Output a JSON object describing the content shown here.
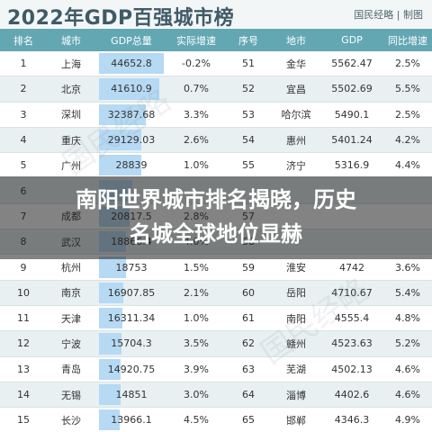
{
  "header": {
    "title": "2022年GDP百强城市榜",
    "source": "国民经略 | 制图"
  },
  "table": {
    "columns": [
      "排名",
      "城市",
      "GDP总量",
      "实际增速",
      "序号",
      "地市",
      "GDP",
      "同比增速"
    ],
    "max_gdp": 44652.8,
    "rows": [
      {
        "rank": "1",
        "city": "上海",
        "gdp": "44652.8",
        "gdp_value": 44652.8,
        "growth": "-0.2%",
        "seq": "51",
        "city2": "金华",
        "gdp2": "5562.47",
        "growth2": "2.5%"
      },
      {
        "rank": "2",
        "city": "北京",
        "gdp": "41610.9",
        "gdp_value": 41610.9,
        "growth": "0.7%",
        "seq": "52",
        "city2": "宜昌",
        "gdp2": "5502.69",
        "growth2": "5.5%"
      },
      {
        "rank": "3",
        "city": "深圳",
        "gdp": "32387.68",
        "gdp_value": 32387.68,
        "growth": "3.3%",
        "seq": "53",
        "city2": "哈尔滨",
        "gdp2": "5490.1",
        "growth2": "2.5%"
      },
      {
        "rank": "4",
        "city": "重庆",
        "gdp": "29129.03",
        "gdp_value": 29129.03,
        "growth": "2.6%",
        "seq": "54",
        "city2": "惠州",
        "gdp2": "5401.24",
        "growth2": "4.2%"
      },
      {
        "rank": "5",
        "city": "广州",
        "gdp": "28839",
        "gdp_value": 28839,
        "growth": "1.0%",
        "seq": "55",
        "city2": "济宁",
        "gdp2": "5316.9",
        "growth2": "4.4%"
      },
      {
        "rank": "6",
        "city": "",
        "gdp": "",
        "gdp_value": 23000,
        "growth": "",
        "seq": "",
        "city2": "",
        "gdp2": "",
        "growth2": ""
      },
      {
        "rank": "7",
        "city": "成都",
        "gdp": "20817.5",
        "gdp_value": 20817.5,
        "growth": "2.8%",
        "seq": "57",
        "city2": "",
        "gdp2": "",
        "growth2": ""
      },
      {
        "rank": "8",
        "city": "武汉",
        "gdp": "18866.4",
        "gdp_value": 18866.4,
        "growth": "4.0%",
        "seq": "58",
        "city2": "",
        "gdp2": "",
        "growth2": ""
      },
      {
        "rank": "9",
        "city": "杭州",
        "gdp": "18753",
        "gdp_value": 18753,
        "growth": "1.5%",
        "seq": "59",
        "city2": "淮安",
        "gdp2": "4742",
        "growth2": "3.6%"
      },
      {
        "rank": "10",
        "city": "南京",
        "gdp": "16907.85",
        "gdp_value": 16907.85,
        "growth": "2.1%",
        "seq": "60",
        "city2": "岳阳",
        "gdp2": "4710.67",
        "growth2": "5.4%"
      },
      {
        "rank": "11",
        "city": "天津",
        "gdp": "16311.34",
        "gdp_value": 16311.34,
        "growth": "1.0%",
        "seq": "61",
        "city2": "南阳",
        "gdp2": "4555.4",
        "growth2": "4.8%"
      },
      {
        "rank": "12",
        "city": "宁波",
        "gdp": "15704.3",
        "gdp_value": 15704.3,
        "growth": "3.5%",
        "seq": "62",
        "city2": "赣州",
        "gdp2": "4523.63",
        "growth2": "5.2%"
      },
      {
        "rank": "13",
        "city": "青岛",
        "gdp": "14920.75",
        "gdp_value": 14920.75,
        "growth": "3.9%",
        "seq": "63",
        "city2": "芜湖",
        "gdp2": "4502.13",
        "growth2": "4.6%"
      },
      {
        "rank": "14",
        "city": "无锡",
        "gdp": "14851",
        "gdp_value": 14851,
        "growth": "3.0%",
        "seq": "64",
        "city2": "淄博",
        "gdp2": "4402.6",
        "growth2": "4.6%"
      },
      {
        "rank": "15",
        "city": "长沙",
        "gdp": "13966.1",
        "gdp_value": 13966.1,
        "growth": "4.5%",
        "seq": "65",
        "city2": "邯郸",
        "gdp2": "4346.3",
        "growth2": "4.9%"
      }
    ]
  },
  "banner": {
    "line1": "南阳世界城市排名揭晓，历史",
    "line2": "名城全球地位显赫"
  }
}
